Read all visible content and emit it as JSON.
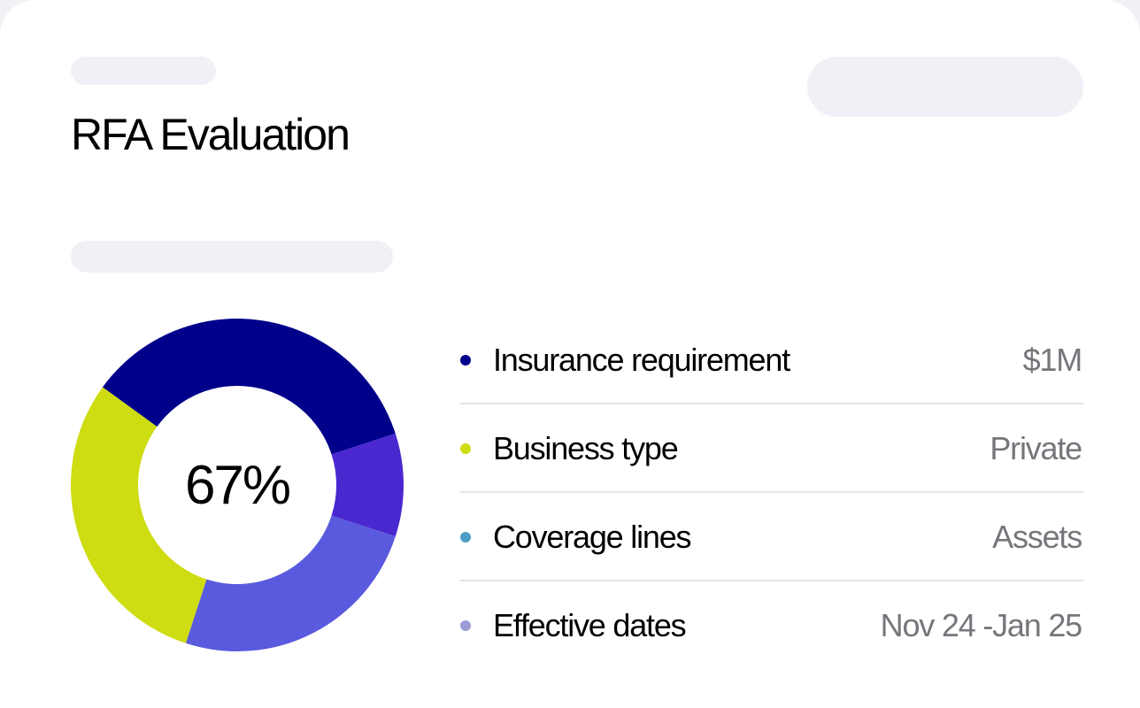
{
  "header": {
    "title": "RFA Evaluation"
  },
  "chart_data": {
    "type": "pie",
    "center_label": "67%",
    "slices": [
      {
        "name": "Insurance requirement",
        "share": 0.35,
        "color": "#00008b"
      },
      {
        "name": "Coverage lines",
        "share": 0.1,
        "color": "#4a28d0"
      },
      {
        "name": "Effective dates",
        "share": 0.25,
        "color": "#5a5ade"
      },
      {
        "name": "Business type",
        "share": 0.3,
        "color": "#cedc12"
      }
    ]
  },
  "legend": {
    "rows": [
      {
        "label": "Insurance requirement",
        "value": "$1M",
        "color": "#00008b"
      },
      {
        "label": "Business type",
        "value": "Private",
        "color": "#cedc12"
      },
      {
        "label": "Coverage lines",
        "value": "Assets",
        "color": "#4e9dc8"
      },
      {
        "label": "Effective dates",
        "value": "Nov 24 -Jan 25",
        "color": "#9c9cd6"
      }
    ]
  }
}
